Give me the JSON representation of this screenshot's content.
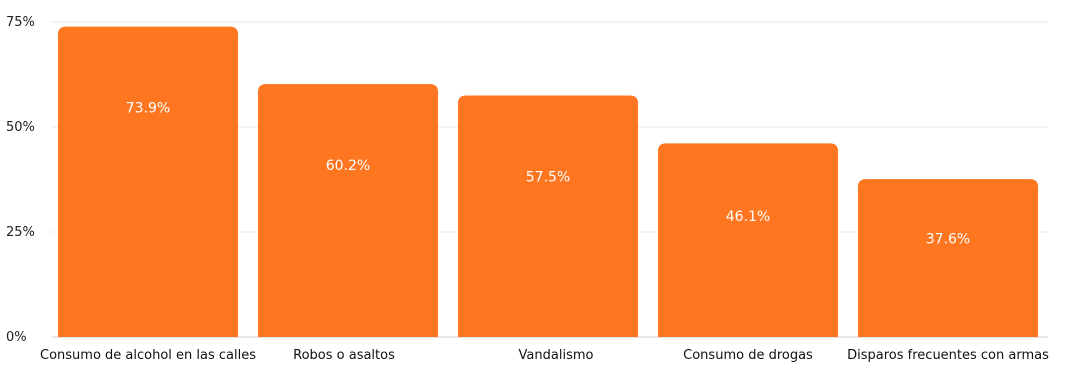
{
  "chart_data": {
    "type": "bar",
    "categories": [
      "Consumo de alcohol en las calles",
      "Robos o asaltos",
      "Vandalismo",
      "Consumo de drogas",
      "Disparos frecuentes con armas"
    ],
    "values": [
      73.9,
      60.2,
      57.5,
      46.1,
      37.6
    ],
    "data_labels": [
      "73.9%",
      "60.2%",
      "57.5%",
      "46.1%",
      "37.6%"
    ],
    "yticks": [
      {
        "value": 0,
        "label": "0%"
      },
      {
        "value": 25,
        "label": "25%"
      },
      {
        "value": 50,
        "label": "50%"
      },
      {
        "value": 75,
        "label": "75%"
      }
    ],
    "ylim": [
      0,
      75
    ],
    "grid": true,
    "legend": "none",
    "bar_color": "#ff7620"
  }
}
